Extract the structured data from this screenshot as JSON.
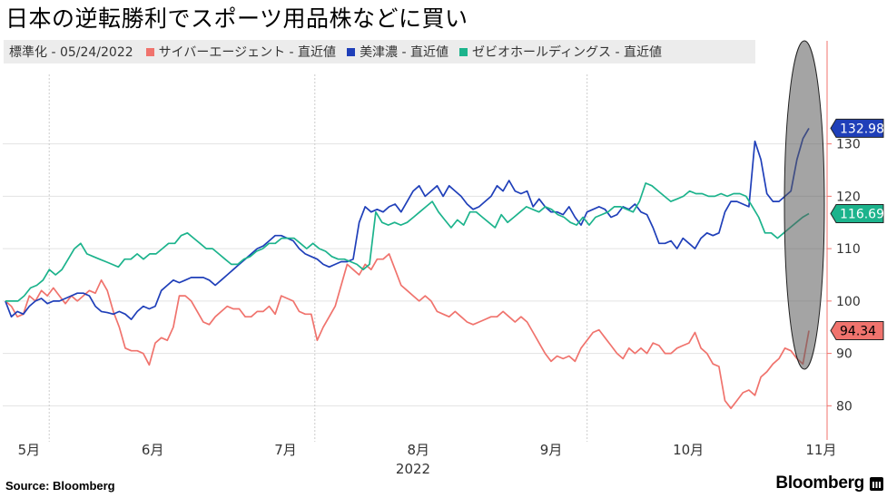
{
  "title": "日本の逆転勝利でスポーツ用品株などに買い",
  "legend": {
    "base_label": "標準化 - 05/24/2022",
    "items": [
      {
        "label": "サイバーエージェント - 直近値",
        "color": "#f0736d"
      },
      {
        "label": "美津濃 - 直近値",
        "color": "#1f3fb9"
      },
      {
        "label": "ゼビオホールディングス - 直近値",
        "color": "#1cb38c"
      }
    ]
  },
  "source": "Source:  Bloomberg",
  "brand": "Bloomberg",
  "chart_data": {
    "type": "line",
    "title": "日本の逆転勝利でスポーツ用品株などに買い",
    "xlabel": "2022",
    "ylabel": "",
    "ylim": [
      74,
      145
    ],
    "yticks": [
      80,
      90,
      100,
      110,
      120,
      130
    ],
    "x_tick_labels": [
      "5月",
      "6月",
      "7月",
      "8月",
      "9月",
      "10月",
      "11月"
    ],
    "x_tick_positions": [
      0.1,
      1.1,
      2.1,
      3.1,
      4.1,
      5.1,
      6.1
    ],
    "x_range": [
      0,
      6.2
    ],
    "year_label": "2022",
    "month_dividers": [
      0.35,
      2.35,
      4.4
    ],
    "series": [
      {
        "name": "サイバーエージェント - 直近値",
        "color": "#f0736d",
        "last_value": 94.34,
        "values": [
          100,
          99,
          97,
          97.5,
          101,
          100,
          102,
          101,
          102.5,
          101,
          99.5,
          101,
          100,
          101,
          102,
          101.5,
          104,
          102,
          98,
          95,
          91,
          90.5,
          90.5,
          90,
          87.8,
          92,
          93,
          92.5,
          95,
          101,
          101,
          100,
          98,
          96,
          95.5,
          97,
          98,
          99,
          98.5,
          98.5,
          97,
          97,
          98,
          98,
          99,
          97.5,
          101,
          100.5,
          100,
          98,
          97.5,
          97.5,
          92.5,
          95,
          97,
          99,
          103,
          107,
          106,
          105,
          107,
          106,
          108,
          108,
          109,
          106,
          103,
          102,
          101,
          100,
          101,
          100,
          98,
          97.5,
          97,
          98,
          97,
          96,
          95.5,
          96,
          96.5,
          97,
          97,
          98,
          97,
          96,
          97,
          96,
          94,
          92,
          90,
          88.5,
          89.5,
          89,
          89.5,
          88.5,
          91,
          92.5,
          94,
          94.5,
          93,
          91.5,
          90,
          89,
          91,
          90,
          91,
          90,
          92,
          91.5,
          90,
          90,
          91,
          91.5,
          92,
          94,
          91,
          90,
          88,
          87.5,
          81,
          79.5,
          81,
          82.5,
          83,
          82,
          85.5,
          86.5,
          88,
          89,
          91,
          90.5,
          89,
          88,
          94.34
        ]
      },
      {
        "name": "美津濃 - 直近値",
        "color": "#1f3fb9",
        "last_value": 132.98,
        "values": [
          100,
          97,
          98,
          97.5,
          99,
          100,
          100.5,
          99.5,
          100,
          100,
          100.5,
          101,
          101.5,
          101.5,
          101,
          99,
          98,
          97.8,
          97.5,
          98,
          97.5,
          96.5,
          98,
          99,
          98.5,
          99,
          102,
          103,
          104,
          103.5,
          104,
          104.5,
          104.5,
          104.5,
          104,
          103,
          104,
          105,
          106,
          107,
          108,
          109,
          110,
          110.5,
          111.5,
          112.5,
          112.5,
          112,
          111.5,
          110,
          109,
          108.5,
          108,
          107,
          106.5,
          107,
          107.5,
          107.5,
          108,
          115,
          118,
          117,
          117.5,
          117,
          118,
          118.5,
          117,
          119,
          121,
          122,
          120,
          121,
          122,
          120,
          122,
          121,
          120,
          118.5,
          117.5,
          118,
          119,
          120,
          122,
          121,
          123,
          121,
          120.5,
          121,
          118,
          119.5,
          118,
          117,
          117,
          116.5,
          118,
          116,
          114.5,
          117,
          117.5,
          118,
          117.5,
          116,
          116.5,
          118,
          117.5,
          118.5,
          117,
          116.5,
          114,
          111,
          111,
          111.5,
          110,
          112,
          111,
          110,
          112,
          113,
          112.5,
          113,
          117,
          119,
          119,
          118.5,
          118,
          130.5,
          127,
          120.5,
          119,
          119,
          120,
          121,
          127,
          131,
          132.98
        ]
      },
      {
        "name": "ゼビオホールディングス - 直近値",
        "color": "#1cb38c",
        "last_value": 116.69,
        "values": [
          100,
          100,
          100,
          101,
          102.5,
          103,
          104,
          106,
          105,
          106,
          108,
          110,
          111,
          109,
          108.5,
          108,
          107.5,
          107,
          106.5,
          108,
          108,
          109,
          108,
          109,
          109,
          110,
          111,
          111,
          112.5,
          113,
          112,
          111,
          110,
          110,
          109,
          108,
          107,
          107,
          108,
          108.5,
          109.5,
          110,
          111,
          111,
          112,
          112,
          112,
          111,
          110,
          111,
          110,
          109.5,
          108.5,
          108,
          108,
          107.5,
          107,
          106,
          107,
          117,
          115,
          114.5,
          115,
          114.5,
          115,
          116,
          117,
          118,
          119,
          117,
          115.5,
          114,
          115.5,
          114.5,
          117,
          117,
          116,
          115,
          114,
          116.5,
          115,
          116,
          117,
          118,
          117.5,
          117,
          118,
          117.5,
          116.5,
          116,
          115,
          114.5,
          116,
          114.5,
          116,
          116.5,
          117,
          118,
          118,
          117.5,
          117,
          119,
          122.5,
          122,
          121,
          120,
          119,
          119.5,
          120,
          121,
          120.5,
          120.5,
          120,
          120,
          120.5,
          120,
          120.5,
          120.5,
          120,
          118,
          116,
          113,
          113,
          112,
          113,
          114,
          115,
          116,
          116.69
        ]
      }
    ],
    "value_labels": [
      {
        "series": "美津濃 - 直近値",
        "text": "132.98",
        "value": 132.98
      },
      {
        "series": "ゼビオホールディングス - 直近値",
        "text": "116.69",
        "value": 116.69
      },
      {
        "series": "サイバーエージェント - 直近値",
        "text": "94.34",
        "value": 94.34
      }
    ],
    "annotation": "highlight ellipse around the final days"
  }
}
